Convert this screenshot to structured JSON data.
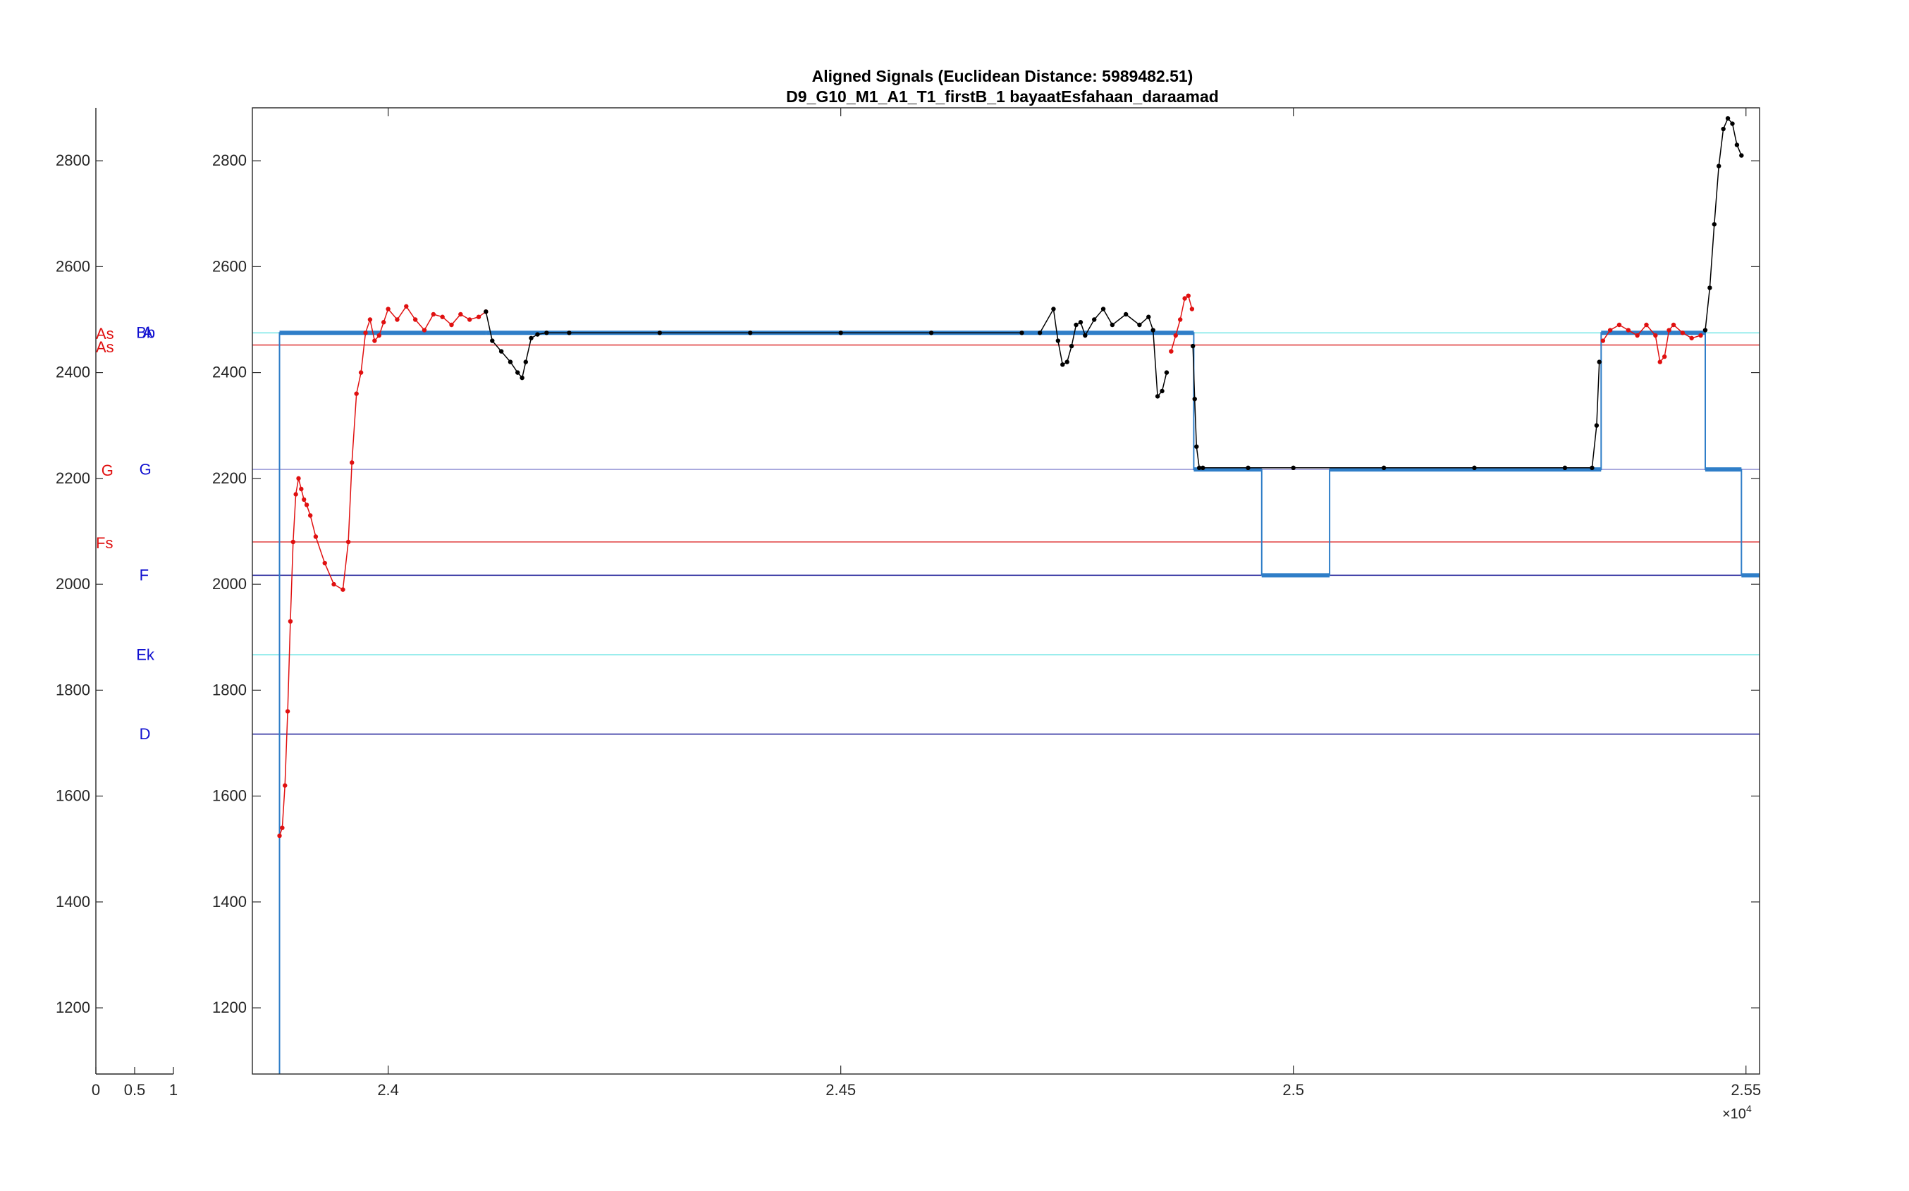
{
  "chart_data": [
    {
      "type": "line",
      "title": "Aligned Signals  (Euclidean Distance: 5989482.51)",
      "subtitle": "D9_G10_M1_A1_T1_firstB_1 bayaatEsfahaan_daraamad",
      "xlabel": "",
      "ylabel": "",
      "xlim": [
        23850,
        25515
      ],
      "ylim": [
        1075,
        2900
      ],
      "x_multiplier_label": "×10",
      "x_multiplier_exponent": "4",
      "x_ticks": [
        {
          "value": 24000,
          "label": "2.4"
        },
        {
          "value": 24500,
          "label": "2.45"
        },
        {
          "value": 25000,
          "label": "2.5"
        },
        {
          "value": 25500,
          "label": "2.55"
        }
      ],
      "y_ticks": [
        {
          "value": 1200,
          "label": "1200"
        },
        {
          "value": 1400,
          "label": "1400"
        },
        {
          "value": 1600,
          "label": "1600"
        },
        {
          "value": 1800,
          "label": "1800"
        },
        {
          "value": 2000,
          "label": "2000"
        },
        {
          "value": 2200,
          "label": "2200"
        },
        {
          "value": 2400,
          "label": "2400"
        },
        {
          "value": 2600,
          "label": "2600"
        },
        {
          "value": 2800,
          "label": "2800"
        }
      ],
      "grid": false,
      "reference_lines": [
        {
          "y": 2475,
          "color": "#7fe8e8"
        },
        {
          "y": 2452,
          "color": "#e04040"
        },
        {
          "y": 2217,
          "color": "#9a9ad8"
        },
        {
          "y": 2080,
          "color": "#e04040"
        },
        {
          "y": 2017,
          "color": "#3030a0"
        },
        {
          "y": 1867,
          "color": "#7fe8e8"
        },
        {
          "y": 1717,
          "color": "#3030a0"
        }
      ],
      "series": [
        {
          "color": "#2f7ec8",
          "style": "step",
          "x": [
            23880,
            23880,
            24108,
            24108,
            24890,
            24890,
            24965,
            24965,
            25040,
            25040,
            25340,
            25340,
            25455,
            25455,
            25495,
            25495,
            25515
          ],
          "y": [
            1075,
            2475,
            2475,
            2475,
            2475,
            2217,
            2217,
            2017,
            2017,
            2217,
            2217,
            2475,
            2475,
            2217,
            2217,
            2017,
            2017
          ]
        },
        {
          "color": "#e01010",
          "style": "dots",
          "segment": "red",
          "x": [
            23880,
            23883,
            23886,
            23889,
            23892,
            23895,
            23898,
            23901,
            23904,
            23907,
            23910,
            23914,
            23920,
            23930,
            23940,
            23950,
            23956,
            23960,
            23965,
            23970,
            23975,
            23980,
            23985,
            23990,
            23995,
            24000,
            24010,
            24020,
            24030,
            24040,
            24050,
            24060,
            24070,
            24080,
            24090,
            24100,
            24108
          ],
          "y": [
            1525,
            1540,
            1620,
            1760,
            1930,
            2080,
            2170,
            2200,
            2180,
            2160,
            2150,
            2130,
            2090,
            2040,
            2000,
            1990,
            2080,
            2230,
            2360,
            2400,
            2475,
            2500,
            2460,
            2470,
            2495,
            2520,
            2500,
            2525,
            2500,
            2480,
            2510,
            2505,
            2490,
            2510,
            2500,
            2505,
            2515
          ]
        },
        {
          "color": "#000000",
          "style": "dots",
          "segment": "black-1",
          "x": [
            24108,
            24115,
            24125,
            24135,
            24143,
            24148,
            24152,
            24158,
            24165,
            24175,
            24200,
            24300,
            24400,
            24500,
            24600,
            24700
          ],
          "y": [
            2515,
            2460,
            2440,
            2420,
            2400,
            2390,
            2420,
            2465,
            2472,
            2475,
            2475,
            2475,
            2475,
            2475,
            2475,
            2475
          ]
        },
        {
          "color": "#000000",
          "style": "dots",
          "segment": "black-2",
          "x": [
            24720,
            24735,
            24740,
            24745,
            24750,
            24755,
            24760,
            24765,
            24770,
            24780,
            24790,
            24800,
            24815,
            24830,
            24840,
            24845,
            24850,
            24855,
            24860
          ],
          "y": [
            2475,
            2520,
            2460,
            2415,
            2420,
            2450,
            2490,
            2495,
            2470,
            2500,
            2520,
            2490,
            2510,
            2490,
            2505,
            2480,
            2355,
            2365,
            2400
          ]
        },
        {
          "color": "#e01010",
          "style": "dots",
          "segment": "red-2",
          "x": [
            24865,
            24870,
            24875,
            24880,
            24884,
            24888
          ],
          "y": [
            2440,
            2470,
            2500,
            2540,
            2545,
            2520
          ]
        },
        {
          "color": "#000000",
          "style": "dots",
          "segment": "black-3",
          "x": [
            24889,
            24891,
            24893,
            24896,
            24900,
            24950,
            25000,
            25100,
            25200,
            25300,
            25330,
            25335,
            25338
          ],
          "y": [
            2450,
            2350,
            2260,
            2220,
            2220,
            2220,
            2220,
            2220,
            2220,
            2220,
            2220,
            2300,
            2420
          ]
        },
        {
          "color": "#e01010",
          "style": "dots",
          "segment": "red-3",
          "x": [
            25342,
            25350,
            25360,
            25370,
            25380,
            25390,
            25400,
            25405,
            25410,
            25415,
            25420,
            25430,
            25440,
            25450
          ],
          "y": [
            2460,
            2480,
            2490,
            2480,
            2470,
            2490,
            2470,
            2420,
            2430,
            2480,
            2490,
            2475,
            2465,
            2470
          ]
        },
        {
          "color": "#000000",
          "style": "dots",
          "segment": "black-4",
          "x": [
            25455,
            25460,
            25465,
            25470,
            25475,
            25480,
            25485,
            25490,
            25495
          ],
          "y": [
            2480,
            2560,
            2680,
            2790,
            2860,
            2880,
            2870,
            2830,
            2810
          ]
        }
      ]
    },
    {
      "type": "scatter",
      "title": "",
      "xlabel": "",
      "ylabel": "",
      "xlim": [
        0,
        1
      ],
      "ylim": [
        1075,
        2900
      ],
      "x_ticks": [
        {
          "value": 0,
          "label": "0"
        },
        {
          "value": 0.5,
          "label": "0.5"
        },
        {
          "value": 1,
          "label": "1"
        }
      ],
      "y_ticks": [
        {
          "value": 1200,
          "label": "1200"
        },
        {
          "value": 1400,
          "label": "1400"
        },
        {
          "value": 1600,
          "label": "1600"
        },
        {
          "value": 1800,
          "label": "1800"
        },
        {
          "value": 2000,
          "label": "2000"
        },
        {
          "value": 2200,
          "label": "2200"
        },
        {
          "value": 2400,
          "label": "2400"
        },
        {
          "value": 2600,
          "label": "2600"
        },
        {
          "value": 2800,
          "label": "2800"
        }
      ],
      "note_labels": [
        {
          "text": "As",
          "x": 0.0,
          "y": 2475,
          "color": "#e01010",
          "size": "large"
        },
        {
          "text": "As",
          "x": 0.0,
          "y": 2450,
          "color": "#e01010",
          "size": "large"
        },
        {
          "text": "G",
          "x": 0.07,
          "y": 2217,
          "color": "#e01010",
          "size": "large"
        },
        {
          "text": "Fs",
          "x": 0.0,
          "y": 2080,
          "color": "#e01010",
          "size": "large"
        },
        {
          "text": "Bb",
          "x": 0.52,
          "y": 2475,
          "color": "#1010d0",
          "size": "small"
        },
        {
          "text": "A",
          "x": 0.6,
          "y": 2475,
          "color": "#1010d0",
          "size": "small"
        },
        {
          "text": "G",
          "x": 0.56,
          "y": 2217,
          "color": "#1010d0",
          "size": "small"
        },
        {
          "text": "F",
          "x": 0.56,
          "y": 2017,
          "color": "#1010d0",
          "size": "small"
        },
        {
          "text": "Ek",
          "x": 0.52,
          "y": 1867,
          "color": "#1010d0",
          "size": "small"
        },
        {
          "text": "D",
          "x": 0.56,
          "y": 1717,
          "color": "#1010d0",
          "size": "small"
        }
      ]
    }
  ]
}
